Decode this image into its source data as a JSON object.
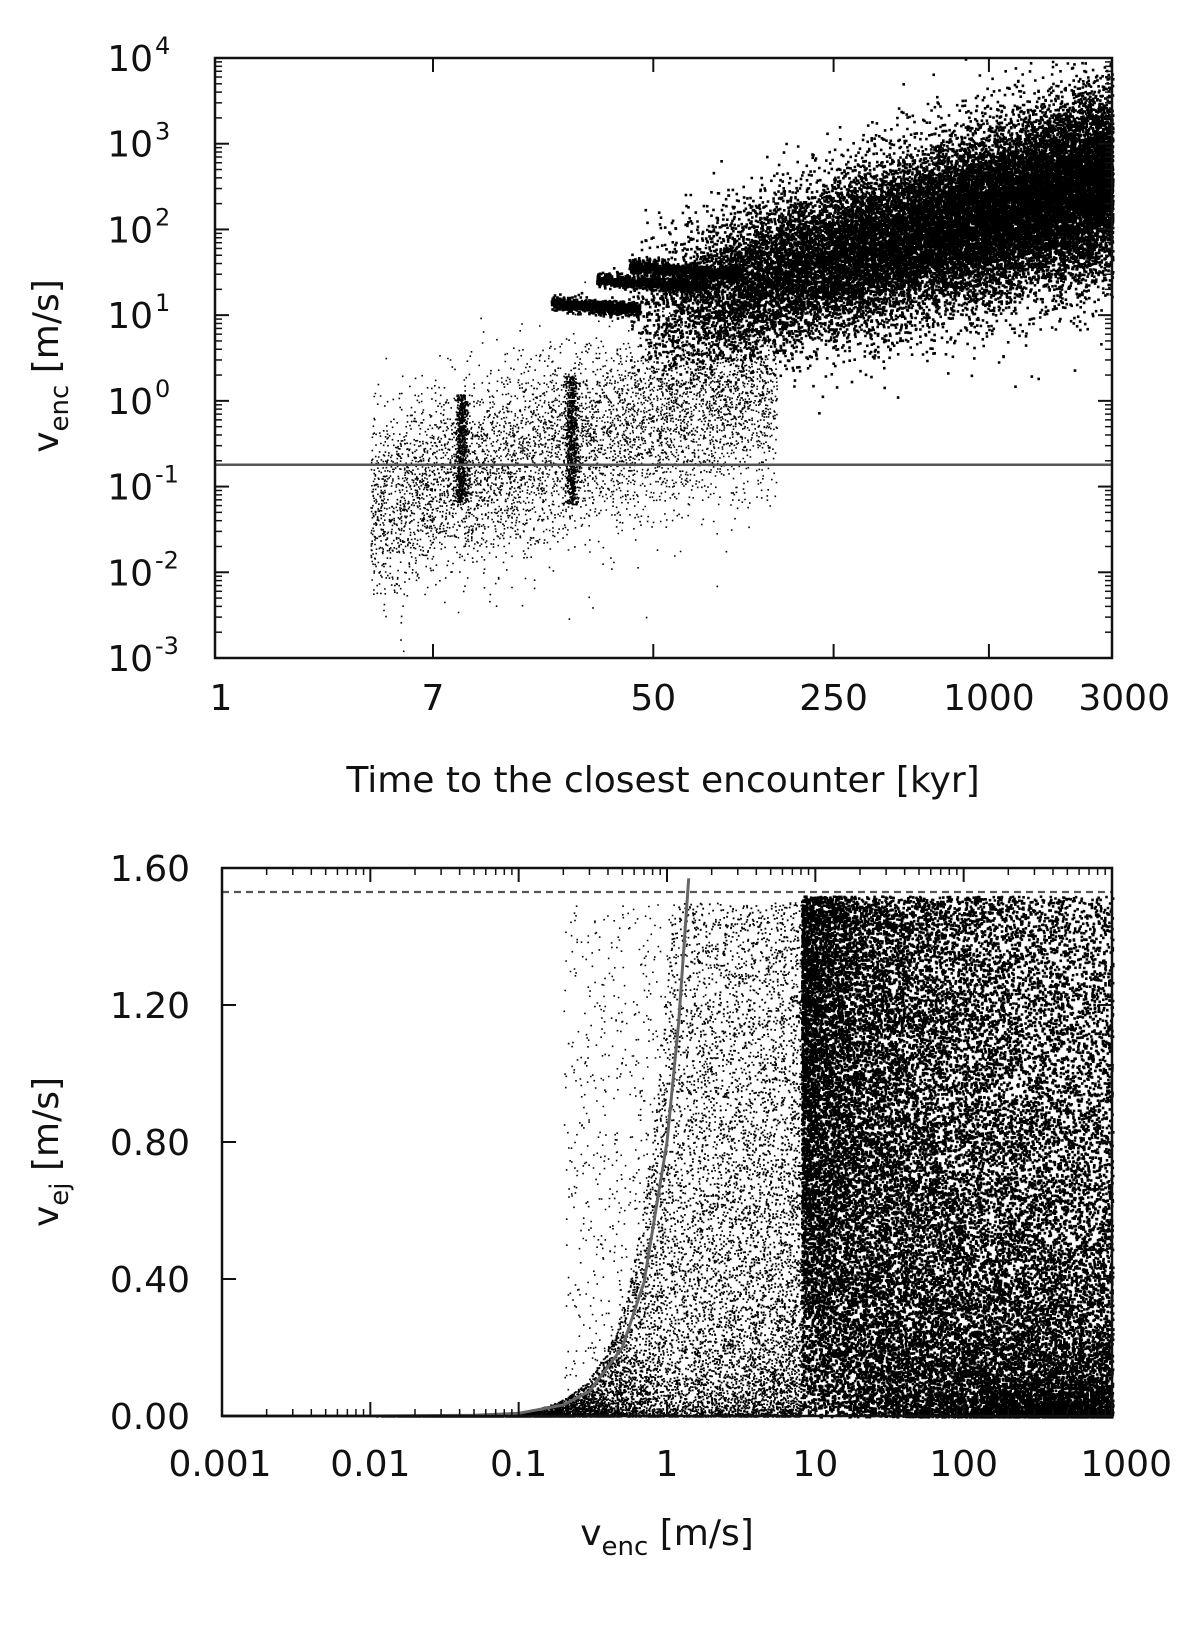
{
  "chart_data": [
    {
      "type": "scatter",
      "xlabel": "Time to the closest encounter [kyr]",
      "ylabel_main": "v",
      "ylabel_sub": "enc",
      "ylabel_unit": "[m/s]",
      "xscale": "log",
      "yscale": "log",
      "xlim": [
        1,
        3000
      ],
      "ylim": [
        0.001,
        10000
      ],
      "xticks": [
        {
          "value": 1,
          "label": "1"
        },
        {
          "value": 7,
          "label": "7"
        },
        {
          "value": 50,
          "label": "50"
        },
        {
          "value": 250,
          "label": "250"
        },
        {
          "value": 1000,
          "label": "1000"
        },
        {
          "value": 3000,
          "label": "3000"
        }
      ],
      "yticks": [
        {
          "value": 0.001,
          "base": "10",
          "exp": "-3"
        },
        {
          "value": 0.01,
          "base": "10",
          "exp": "-2"
        },
        {
          "value": 0.1,
          "base": "10",
          "exp": "-1"
        },
        {
          "value": 1,
          "base": "10",
          "exp": "0"
        },
        {
          "value": 10,
          "base": "10",
          "exp": "1"
        },
        {
          "value": 100,
          "base": "10",
          "exp": "2"
        },
        {
          "value": 1000,
          "base": "10",
          "exp": "3"
        },
        {
          "value": 10000,
          "base": "10",
          "exp": "4"
        }
      ],
      "reference_line": {
        "y": 0.18,
        "style": "solid",
        "color": "#555555"
      },
      "point_color": "#000000",
      "density_regions": [
        {
          "x_range": [
            40,
            3000
          ],
          "y_center_log": "rises from 10 to 400",
          "density": "very high"
        },
        {
          "x_range": [
            4,
            50
          ],
          "y_range": [
            0.001,
            3
          ],
          "density": "sparse"
        }
      ]
    },
    {
      "type": "scatter",
      "xlabel_main": "v",
      "xlabel_sub": "enc",
      "xlabel_unit": "[m/s]",
      "ylabel_main": "v",
      "ylabel_sub": "ej",
      "ylabel_unit": "[m/s]",
      "xscale": "log",
      "yscale": "linear",
      "xlim": [
        0.001,
        1000
      ],
      "ylim": [
        0,
        1.6
      ],
      "xticks": [
        {
          "value": 0.001,
          "label": "0.001"
        },
        {
          "value": 0.01,
          "label": "0.01"
        },
        {
          "value": 0.1,
          "label": "0.1"
        },
        {
          "value": 1,
          "label": "1"
        },
        {
          "value": 10,
          "label": "10"
        },
        {
          "value": 100,
          "label": "100"
        },
        {
          "value": 1000,
          "label": "1000"
        }
      ],
      "yticks": [
        {
          "value": 0.0,
          "label": "0.00"
        },
        {
          "value": 0.4,
          "label": "0.40"
        },
        {
          "value": 0.8,
          "label": "0.80"
        },
        {
          "value": 1.2,
          "label": "1.20"
        },
        {
          "value": 1.6,
          "label": "1.60"
        }
      ],
      "dashed_line": {
        "y": 1.53,
        "style": "dashed",
        "color": "#555555"
      },
      "curve": {
        "description": "quadratic",
        "x": [
          0.001,
          0.01,
          0.05,
          0.1,
          0.2,
          0.3,
          0.5,
          0.7,
          1.0,
          1.2,
          1.4
        ],
        "y": [
          0.0,
          0.0001,
          0.002,
          0.008,
          0.032,
          0.072,
          0.2,
          0.39,
          0.8,
          1.15,
          1.57
        ],
        "color": "#666666"
      },
      "point_color": "#000000",
      "density_regions": [
        {
          "x_range": [
            8,
            1000
          ],
          "y_range": [
            0,
            1.52
          ],
          "density": "very high"
        }
      ]
    }
  ]
}
